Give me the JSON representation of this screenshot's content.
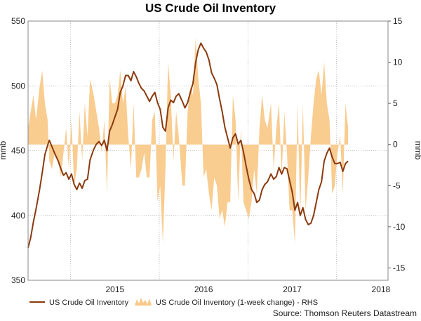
{
  "chart_data": {
    "type": "line",
    "title": "US Crude Oil Inventory",
    "source": "Source: Thomson Reuters Datastream",
    "left_axis": {
      "label": "mmb",
      "ylim": [
        350,
        550
      ],
      "ticks": [
        "350",
        "400",
        "450",
        "500",
        "550"
      ]
    },
    "right_axis": {
      "label": "mmb",
      "ylim": [
        -16.5,
        15
      ],
      "ticks": [
        "-15",
        "-10",
        "-5",
        "0",
        "5",
        "10",
        "15"
      ]
    },
    "x_axis": {
      "ticks": [
        "2015",
        "2016",
        "2017",
        "2018"
      ],
      "xlim": [
        2014.52,
        2018.58
      ]
    },
    "grid": true,
    "legend_position": "bottom-left",
    "series": [
      {
        "name": "US Crude Oil Inventory",
        "type": "line",
        "axis": "left",
        "color": "#8b3a0e",
        "points": [
          [
            2014.52,
            375
          ],
          [
            2014.55,
            383
          ],
          [
            2014.58,
            395
          ],
          [
            2014.61,
            405
          ],
          [
            2014.65,
            420
          ],
          [
            2014.68,
            433
          ],
          [
            2014.71,
            447
          ],
          [
            2014.74,
            454
          ],
          [
            2014.76,
            458
          ],
          [
            2014.79,
            453
          ],
          [
            2014.82,
            448
          ],
          [
            2014.86,
            442
          ],
          [
            2014.89,
            436
          ],
          [
            2014.92,
            431
          ],
          [
            2014.95,
            433
          ],
          [
            2014.98,
            428
          ],
          [
            2015.01,
            432
          ],
          [
            2015.04,
            424
          ],
          [
            2015.07,
            420
          ],
          [
            2015.1,
            425
          ],
          [
            2015.13,
            421
          ],
          [
            2015.16,
            427
          ],
          [
            2015.19,
            428
          ],
          [
            2015.22,
            443
          ],
          [
            2015.26,
            451
          ],
          [
            2015.29,
            455
          ],
          [
            2015.32,
            457
          ],
          [
            2015.35,
            454
          ],
          [
            2015.38,
            458
          ],
          [
            2015.41,
            450
          ],
          [
            2015.44,
            465
          ],
          [
            2015.47,
            470
          ],
          [
            2015.5,
            476
          ],
          [
            2015.53,
            482
          ],
          [
            2015.56,
            495
          ],
          [
            2015.59,
            500
          ],
          [
            2015.62,
            508
          ],
          [
            2015.65,
            508
          ],
          [
            2015.68,
            504
          ],
          [
            2015.71,
            511
          ],
          [
            2015.74,
            507
          ],
          [
            2015.77,
            502
          ],
          [
            2015.8,
            498
          ],
          [
            2015.83,
            496
          ],
          [
            2015.86,
            492
          ],
          [
            2015.89,
            488
          ],
          [
            2015.92,
            492
          ],
          [
            2015.95,
            495
          ],
          [
            2015.98,
            487
          ],
          [
            2016.01,
            482
          ],
          [
            2016.04,
            468
          ],
          [
            2016.07,
            465
          ],
          [
            2016.1,
            483
          ],
          [
            2016.13,
            489
          ],
          [
            2016.16,
            487
          ],
          [
            2016.19,
            492
          ],
          [
            2016.22,
            494
          ],
          [
            2016.26,
            488
          ],
          [
            2016.29,
            483
          ],
          [
            2016.32,
            487
          ],
          [
            2016.35,
            495
          ],
          [
            2016.38,
            502
          ],
          [
            2016.41,
            518
          ],
          [
            2016.44,
            528
          ],
          [
            2016.47,
            533
          ],
          [
            2016.5,
            529
          ],
          [
            2016.53,
            526
          ],
          [
            2016.56,
            520
          ],
          [
            2016.59,
            510
          ],
          [
            2016.62,
            506
          ],
          [
            2016.65,
            501
          ],
          [
            2016.68,
            490
          ],
          [
            2016.71,
            480
          ],
          [
            2016.74,
            468
          ],
          [
            2016.77,
            460
          ],
          [
            2016.8,
            452
          ],
          [
            2016.83,
            460
          ],
          [
            2016.86,
            463
          ],
          [
            2016.89,
            455
          ],
          [
            2016.92,
            458
          ],
          [
            2016.95,
            449
          ],
          [
            2016.98,
            438
          ],
          [
            2017.01,
            428
          ],
          [
            2017.04,
            420
          ],
          [
            2017.07,
            417
          ],
          [
            2017.1,
            410
          ],
          [
            2017.13,
            412
          ],
          [
            2017.16,
            420
          ],
          [
            2017.19,
            424
          ],
          [
            2017.22,
            426
          ],
          [
            2017.26,
            432
          ],
          [
            2017.29,
            428
          ],
          [
            2017.32,
            430
          ],
          [
            2017.35,
            437
          ],
          [
            2017.38,
            432
          ],
          [
            2017.41,
            437
          ],
          [
            2017.44,
            436
          ],
          [
            2017.47,
            427
          ],
          [
            2017.5,
            418
          ],
          [
            2017.53,
            404
          ],
          [
            2017.56,
            410
          ],
          [
            2017.59,
            400
          ],
          [
            2017.62,
            406
          ],
          [
            2017.65,
            397
          ],
          [
            2017.68,
            393
          ],
          [
            2017.71,
            394
          ],
          [
            2017.74,
            400
          ],
          [
            2017.77,
            410
          ],
          [
            2017.8,
            420
          ],
          [
            2017.83,
            426
          ],
          [
            2017.86,
            442
          ],
          [
            2017.89,
            448
          ],
          [
            2017.92,
            452
          ],
          [
            2017.95,
            445
          ],
          [
            2017.98,
            440
          ],
          [
            2018.01,
            440
          ],
          [
            2018.04,
            441
          ],
          [
            2018.07,
            434
          ],
          [
            2018.1,
            440
          ],
          [
            2018.13,
            442
          ]
        ]
      },
      {
        "name": "US Crude Oil Inventory (1-week change) - RHS",
        "type": "area",
        "axis": "right",
        "color": "#f9c98a",
        "points": [
          [
            2014.52,
            2
          ],
          [
            2014.55,
            4
          ],
          [
            2014.58,
            6
          ],
          [
            2014.61,
            3
          ],
          [
            2014.65,
            7
          ],
          [
            2014.68,
            9
          ],
          [
            2014.71,
            5
          ],
          [
            2014.74,
            3
          ],
          [
            2014.76,
            -2
          ],
          [
            2014.79,
            -3
          ],
          [
            2014.82,
            -1
          ],
          [
            2014.86,
            -2
          ],
          [
            2014.89,
            -4
          ],
          [
            2014.92,
            -1
          ],
          [
            2014.95,
            2
          ],
          [
            2014.98,
            -3
          ],
          [
            2015.01,
            3
          ],
          [
            2015.04,
            -5
          ],
          [
            2015.07,
            -3
          ],
          [
            2015.1,
            4
          ],
          [
            2015.13,
            -2
          ],
          [
            2015.16,
            5
          ],
          [
            2015.19,
            1
          ],
          [
            2015.22,
            8
          ],
          [
            2015.26,
            6
          ],
          [
            2015.29,
            4
          ],
          [
            2015.32,
            2
          ],
          [
            2015.35,
            -1
          ],
          [
            2015.38,
            3
          ],
          [
            2015.41,
            -6
          ],
          [
            2015.44,
            8
          ],
          [
            2015.47,
            5
          ],
          [
            2015.5,
            5
          ],
          [
            2015.53,
            6
          ],
          [
            2015.56,
            9
          ],
          [
            2015.59,
            5
          ],
          [
            2015.62,
            7
          ],
          [
            2015.65,
            1
          ],
          [
            2015.68,
            -3
          ],
          [
            2015.71,
            5
          ],
          [
            2015.74,
            -4
          ],
          [
            2015.77,
            -4
          ],
          [
            2015.8,
            -3
          ],
          [
            2015.83,
            -1
          ],
          [
            2015.86,
            -4
          ],
          [
            2015.89,
            -4
          ],
          [
            2015.92,
            3
          ],
          [
            2015.95,
            4
          ],
          [
            2015.98,
            -7
          ],
          [
            2016.01,
            -5
          ],
          [
            2016.04,
            -12
          ],
          [
            2016.07,
            -3
          ],
          [
            2016.1,
            10
          ],
          [
            2016.13,
            6
          ],
          [
            2016.16,
            -2
          ],
          [
            2016.19,
            4
          ],
          [
            2016.22,
            1
          ],
          [
            2016.26,
            -5
          ],
          [
            2016.29,
            -5
          ],
          [
            2016.32,
            4
          ],
          [
            2016.35,
            7
          ],
          [
            2016.38,
            6
          ],
          [
            2016.41,
            13
          ],
          [
            2016.44,
            8
          ],
          [
            2016.47,
            5
          ],
          [
            2016.5,
            -4
          ],
          [
            2016.53,
            -3
          ],
          [
            2016.56,
            -6
          ],
          [
            2016.59,
            -8
          ],
          [
            2016.62,
            -4
          ],
          [
            2016.65,
            -5
          ],
          [
            2016.68,
            -9
          ],
          [
            2016.71,
            -8
          ],
          [
            2016.74,
            -10
          ],
          [
            2016.77,
            -7
          ],
          [
            2016.8,
            -7
          ],
          [
            2016.83,
            6
          ],
          [
            2016.86,
            3
          ],
          [
            2016.89,
            -7
          ],
          [
            2016.92,
            2
          ],
          [
            2016.95,
            -7
          ],
          [
            2016.98,
            -8
          ],
          [
            2017.01,
            -9
          ],
          [
            2017.04,
            -7
          ],
          [
            2017.07,
            -3
          ],
          [
            2017.1,
            -6
          ],
          [
            2017.13,
            2
          ],
          [
            2017.16,
            6
          ],
          [
            2017.19,
            3
          ],
          [
            2017.22,
            2
          ],
          [
            2017.26,
            5
          ],
          [
            2017.29,
            -3
          ],
          [
            2017.32,
            2
          ],
          [
            2017.35,
            5
          ],
          [
            2017.38,
            -4
          ],
          [
            2017.41,
            4
          ],
          [
            2017.44,
            -1
          ],
          [
            2017.47,
            -8
          ],
          [
            2017.5,
            -8
          ],
          [
            2017.53,
            -12
          ],
          [
            2017.56,
            5
          ],
          [
            2017.59,
            -9
          ],
          [
            2017.62,
            5
          ],
          [
            2017.65,
            -8
          ],
          [
            2017.68,
            -4
          ],
          [
            2017.71,
            1
          ],
          [
            2017.74,
            5
          ],
          [
            2017.77,
            8
          ],
          [
            2017.8,
            9
          ],
          [
            2017.83,
            6
          ],
          [
            2017.86,
            10
          ],
          [
            2017.89,
            5
          ],
          [
            2017.92,
            3
          ],
          [
            2017.95,
            -6
          ],
          [
            2017.98,
            -5
          ],
          [
            2018.01,
            -1
          ],
          [
            2018.04,
            1
          ],
          [
            2018.07,
            -6
          ],
          [
            2018.1,
            5
          ],
          [
            2018.13,
            2
          ]
        ]
      }
    ]
  }
}
